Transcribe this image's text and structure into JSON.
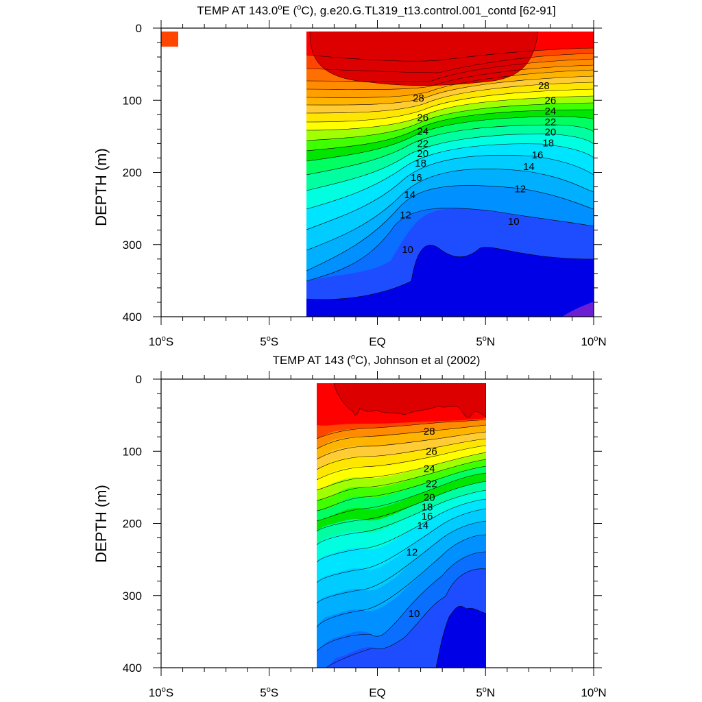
{
  "chart_data": [
    {
      "type": "contour",
      "title_main": "TEMP AT 143.0",
      "title_sup": "o",
      "title_mid": "E (",
      "title_sup2": "o",
      "title_rest": "C), g.e20.G.TL319_t13.control.001_contd [62-91]",
      "ylabel": "DEPTH (m)",
      "y_ticks": [
        "0",
        "100",
        "200",
        "300",
        "400"
      ],
      "x_ticks": [
        {
          "deg": "10",
          "sup": "o",
          "hemi": "S"
        },
        {
          "deg": "5",
          "sup": "o",
          "hemi": "S"
        },
        {
          "deg": "EQ",
          "sup": "",
          "hemi": ""
        },
        {
          "deg": "5",
          "sup": "o",
          "hemi": "N"
        },
        {
          "deg": "10",
          "sup": "o",
          "hemi": "N"
        }
      ],
      "xlim": [
        -10,
        10
      ],
      "ylim": [
        400,
        0
      ],
      "data_xrange": [
        -3.3,
        10
      ],
      "contour_labels": [
        {
          "text": "28",
          "x": 1.9,
          "y": 97
        },
        {
          "text": "28",
          "x": 7.7,
          "y": 80
        },
        {
          "text": "26",
          "x": 2.1,
          "y": 124
        },
        {
          "text": "26",
          "x": 8.0,
          "y": 100
        },
        {
          "text": "24",
          "x": 2.1,
          "y": 143
        },
        {
          "text": "24",
          "x": 8.0,
          "y": 115
        },
        {
          "text": "22",
          "x": 2.1,
          "y": 160
        },
        {
          "text": "22",
          "x": 8.0,
          "y": 130
        },
        {
          "text": "20",
          "x": 2.1,
          "y": 174
        },
        {
          "text": "20",
          "x": 8.0,
          "y": 144
        },
        {
          "text": "18",
          "x": 2.0,
          "y": 187
        },
        {
          "text": "18",
          "x": 7.9,
          "y": 159
        },
        {
          "text": "16",
          "x": 1.8,
          "y": 207
        },
        {
          "text": "16",
          "x": 7.4,
          "y": 176
        },
        {
          "text": "14",
          "x": 1.5,
          "y": 231
        },
        {
          "text": "14",
          "x": 7.0,
          "y": 192
        },
        {
          "text": "12",
          "x": 1.3,
          "y": 259
        },
        {
          "text": "12",
          "x": 6.6,
          "y": 223
        },
        {
          "text": "10",
          "x": 1.4,
          "y": 307
        },
        {
          "text": "10",
          "x": 6.3,
          "y": 268
        }
      ]
    },
    {
      "type": "contour",
      "title_main": "TEMP AT 143 (",
      "title_sup": "o",
      "title_rest": "C), Johnson et al (2002)",
      "ylabel": "DEPTH (m)",
      "y_ticks": [
        "0",
        "100",
        "200",
        "300",
        "400"
      ],
      "x_ticks": [
        {
          "deg": "10",
          "sup": "o",
          "hemi": "S"
        },
        {
          "deg": "5",
          "sup": "o",
          "hemi": "S"
        },
        {
          "deg": "EQ",
          "sup": "",
          "hemi": ""
        },
        {
          "deg": "5",
          "sup": "o",
          "hemi": "N"
        },
        {
          "deg": "10",
          "sup": "o",
          "hemi": "N"
        }
      ],
      "xlim": [
        -10,
        10
      ],
      "ylim": [
        400,
        0
      ],
      "data_xrange": [
        -2.8,
        5
      ],
      "contour_labels": [
        {
          "text": "28",
          "x": 2.4,
          "y": 72
        },
        {
          "text": "26",
          "x": 2.5,
          "y": 100
        },
        {
          "text": "24",
          "x": 2.4,
          "y": 124
        },
        {
          "text": "22",
          "x": 2.5,
          "y": 145
        },
        {
          "text": "20",
          "x": 2.4,
          "y": 164
        },
        {
          "text": "18",
          "x": 2.3,
          "y": 177
        },
        {
          "text": "16",
          "x": 2.3,
          "y": 190
        },
        {
          "text": "14",
          "x": 2.1,
          "y": 203
        },
        {
          "text": "12",
          "x": 1.6,
          "y": 240
        },
        {
          "text": "10",
          "x": 1.7,
          "y": 325
        }
      ]
    }
  ]
}
